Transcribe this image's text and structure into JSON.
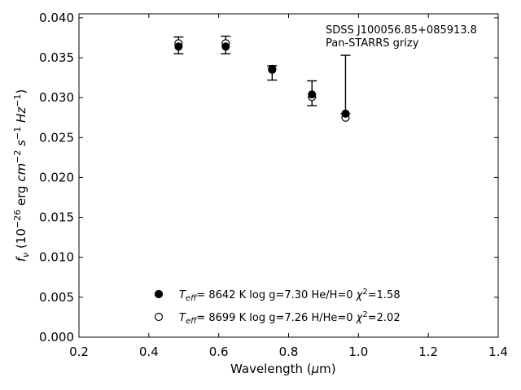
{
  "chart_data": {
    "type": "scatter",
    "xlabel": "Wavelength (μm)",
    "ylabel": "f_ν (10^-26 erg cm^-2 s^-1 Hz^-1)",
    "xlim": [
      0.2,
      1.4
    ],
    "ylim": [
      0.0,
      0.0405
    ],
    "xticks": [
      "0.2",
      "0.4",
      "0.6",
      "0.8",
      "1.0",
      "1.2",
      "1.4"
    ],
    "yticks": [
      "0.000",
      "0.005",
      "0.010",
      "0.015",
      "0.020",
      "0.025",
      "0.030",
      "0.035",
      "0.040"
    ],
    "grid": false,
    "annotation": {
      "line1": "SDSS J100056.85+085913.8",
      "line2": "Pan-STARRS grizy"
    },
    "observed": {
      "x": [
        0.485,
        0.62,
        0.753,
        0.867,
        0.963
      ],
      "y": [
        0.0366,
        0.0366,
        0.0331,
        0.0305,
        0.0282
      ],
      "yerr_low": [
        0.0355,
        0.0355,
        0.0322,
        0.029,
        0.028
      ],
      "yerr_high": [
        0.0376,
        0.0377,
        0.034,
        0.0321,
        0.0353
      ]
    },
    "series": [
      {
        "marker": "filled-circle",
        "legend": {
          "teff": "8642 K",
          "logg": "log g=7.30",
          "comp": "He/H=0",
          "chi2": "=1.58"
        },
        "x": [
          0.485,
          0.62,
          0.753,
          0.867,
          0.963
        ],
        "y": [
          0.0364,
          0.0364,
          0.0336,
          0.0304,
          0.028
        ]
      },
      {
        "marker": "open-circle",
        "legend": {
          "teff": "8699 K",
          "logg": "log g=7.26",
          "comp": "H/He=0",
          "chi2": "=2.02"
        },
        "x": [
          0.485,
          0.62,
          0.753,
          0.867,
          0.963
        ],
        "y": [
          0.0368,
          0.0368,
          0.0335,
          0.0301,
          0.0275
        ]
      }
    ]
  }
}
